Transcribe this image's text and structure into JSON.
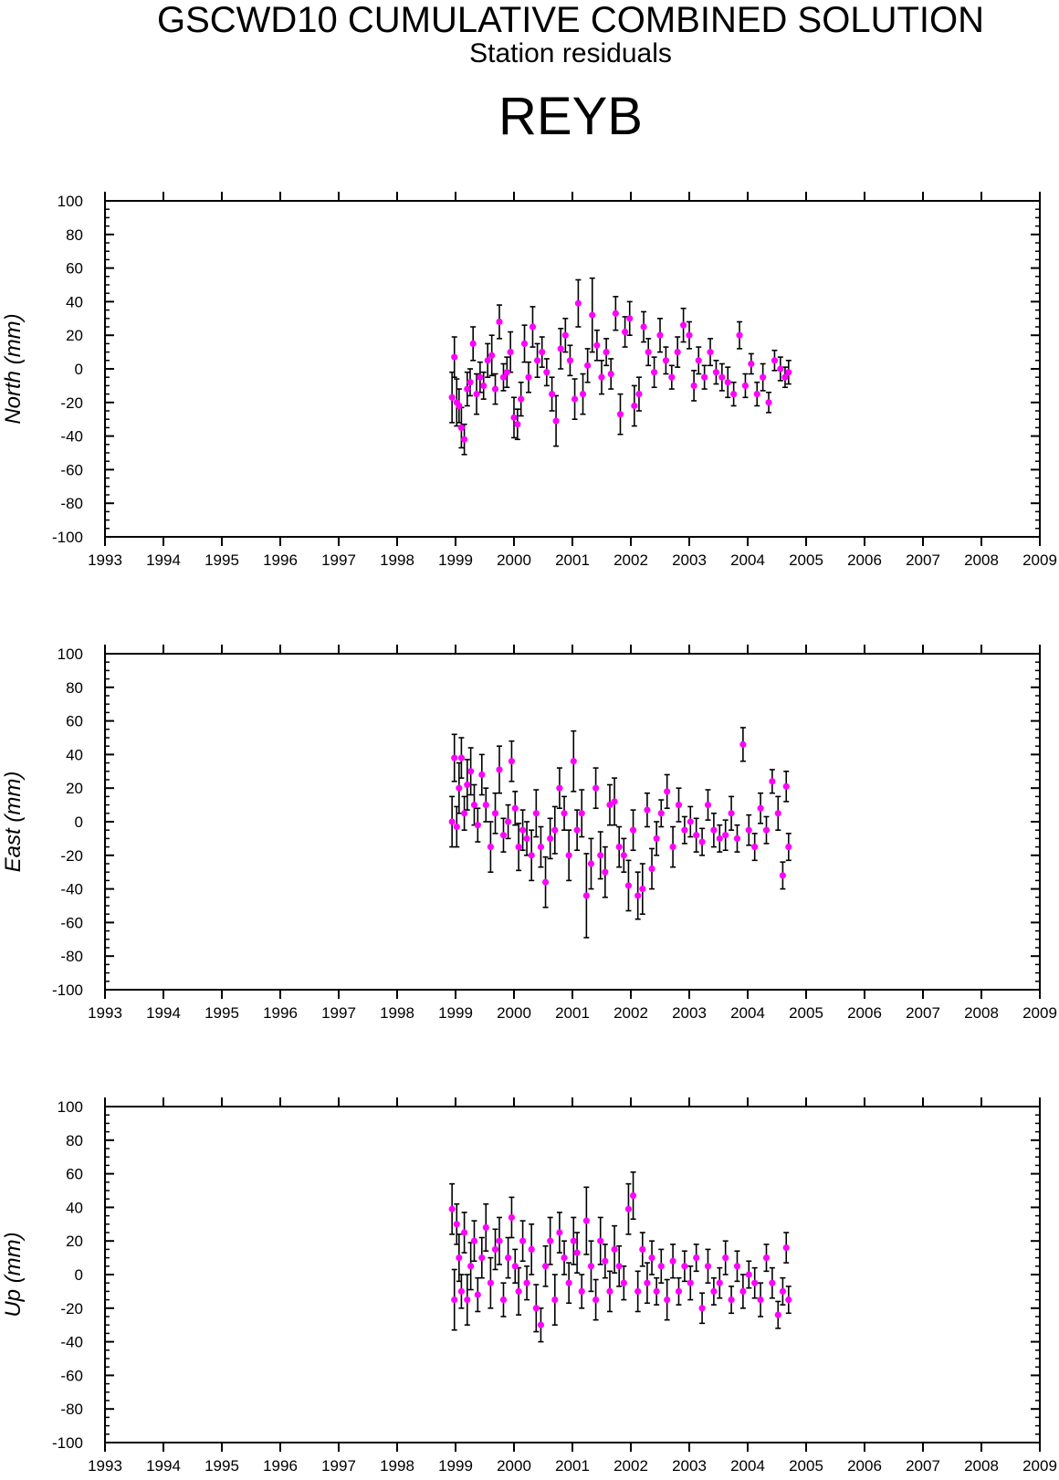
{
  "header": {
    "title": "GSCWD10 CUMULATIVE COMBINED SOLUTION",
    "subtitle": "Station residuals",
    "station": "REYB"
  },
  "colors": {
    "point": "#ff00ff",
    "errorbar": "#000000",
    "axis": "#000000",
    "background": "#ffffff"
  },
  "chart_data": [
    {
      "type": "scatter",
      "ylabel": "North (mm)",
      "xlim": [
        1993,
        2009
      ],
      "ylim": [
        -100,
        100
      ],
      "x_tick_labels": [
        "1993",
        "1994",
        "1995",
        "1996",
        "1997",
        "1998",
        "1999",
        "2000",
        "2001",
        "2002",
        "2003",
        "2004",
        "2005",
        "2006",
        "2007",
        "2008",
        "2009"
      ],
      "y_tick_labels": [
        "100",
        "80",
        "60",
        "40",
        "20",
        "0",
        "-20",
        "-40",
        "-60",
        "-80",
        "-100"
      ],
      "error_bars": true,
      "series": [
        {
          "x": [
            1998.94,
            1998.98,
            1999.02,
            1999.06,
            1999.1,
            1999.15,
            1999.2,
            1999.25,
            1999.3,
            1999.36,
            1999.42,
            1999.48,
            1999.55,
            1999.62,
            1999.68,
            1999.75,
            1999.82,
            1999.88,
            1999.94,
            2000.0,
            2000.06,
            2000.12,
            2000.18,
            2000.25,
            2000.32,
            2000.4,
            2000.48,
            2000.56,
            2000.65,
            2000.72,
            2000.8,
            2000.88,
            2000.96,
            2001.04,
            2001.1,
            2001.18,
            2001.26,
            2001.34,
            2001.42,
            2001.5,
            2001.58,
            2001.66,
            2001.74,
            2001.82,
            2001.9,
            2001.98,
            2002.06,
            2002.14,
            2002.22,
            2002.3,
            2002.4,
            2002.5,
            2002.6,
            2002.7,
            2002.8,
            2002.9,
            2003.0,
            2003.08,
            2003.16,
            2003.26,
            2003.36,
            2003.46,
            2003.56,
            2003.66,
            2003.76,
            2003.86,
            2003.96,
            2004.06,
            2004.16,
            2004.26,
            2004.36,
            2004.46,
            2004.56,
            2004.64,
            2004.7
          ],
          "y": [
            -17,
            7,
            -20,
            -22,
            -35,
            -42,
            -12,
            -8,
            15,
            -15,
            -5,
            -10,
            5,
            8,
            -12,
            28,
            -5,
            -2,
            10,
            -29,
            -33,
            -18,
            15,
            -5,
            25,
            5,
            10,
            -2,
            -15,
            -31,
            12,
            20,
            5,
            -18,
            39,
            -15,
            2,
            32,
            14,
            -5,
            10,
            -3,
            33,
            -27,
            22,
            30,
            -22,
            -15,
            25,
            10,
            -2,
            20,
            5,
            -5,
            10,
            26,
            20,
            -10,
            5,
            -5,
            10,
            -2,
            -5,
            -8,
            -15,
            20,
            -10,
            3,
            -15,
            -5,
            -20,
            5,
            0,
            -5,
            -2
          ],
          "err": [
            15,
            12,
            14,
            10,
            12,
            9,
            10,
            8,
            10,
            12,
            9,
            8,
            10,
            12,
            9,
            10,
            8,
            9,
            12,
            12,
            9,
            10,
            11,
            9,
            12,
            10,
            9,
            8,
            10,
            15,
            12,
            10,
            9,
            12,
            14,
            12,
            10,
            22,
            9,
            10,
            8,
            9,
            10,
            12,
            9,
            10,
            12,
            10,
            9,
            8,
            9,
            10,
            8,
            7,
            9,
            10,
            8,
            9,
            8,
            7,
            8,
            7,
            8,
            9,
            7,
            8,
            7,
            6,
            7,
            8,
            6,
            6,
            7,
            6,
            7
          ]
        }
      ]
    },
    {
      "type": "scatter",
      "ylabel": "East (mm)",
      "xlim": [
        1993,
        2009
      ],
      "ylim": [
        -100,
        100
      ],
      "x_tick_labels": [
        "1993",
        "1994",
        "1995",
        "1996",
        "1997",
        "1998",
        "1999",
        "2000",
        "2001",
        "2002",
        "2003",
        "2004",
        "2005",
        "2006",
        "2007",
        "2008",
        "2009"
      ],
      "y_tick_labels": [
        "100",
        "80",
        "60",
        "40",
        "20",
        "0",
        "-20",
        "-40",
        "-60",
        "-80",
        "-100"
      ],
      "error_bars": true,
      "series": [
        {
          "x": [
            1998.94,
            1998.98,
            1999.02,
            1999.06,
            1999.1,
            1999.15,
            1999.2,
            1999.26,
            1999.32,
            1999.38,
            1999.45,
            1999.52,
            1999.6,
            1999.68,
            1999.75,
            1999.82,
            1999.9,
            1999.96,
            2000.02,
            2000.08,
            2000.15,
            2000.22,
            2000.3,
            2000.38,
            2000.46,
            2000.54,
            2000.62,
            2000.7,
            2000.78,
            2000.86,
            2000.94,
            2001.02,
            2001.08,
            2001.16,
            2001.24,
            2001.32,
            2001.4,
            2001.48,
            2001.56,
            2001.64,
            2001.72,
            2001.8,
            2001.88,
            2001.96,
            2002.04,
            2002.12,
            2002.2,
            2002.28,
            2002.36,
            2002.44,
            2002.52,
            2002.62,
            2002.72,
            2002.82,
            2002.92,
            2003.02,
            2003.12,
            2003.22,
            2003.32,
            2003.42,
            2003.52,
            2003.62,
            2003.72,
            2003.82,
            2003.92,
            2004.02,
            2004.12,
            2004.22,
            2004.32,
            2004.42,
            2004.52,
            2004.6,
            2004.66,
            2004.7
          ],
          "y": [
            0,
            38,
            -3,
            20,
            38,
            5,
            22,
            30,
            10,
            -2,
            28,
            10,
            -15,
            5,
            31,
            -8,
            0,
            36,
            8,
            -15,
            -5,
            -10,
            -20,
            5,
            -15,
            -36,
            -10,
            -5,
            20,
            5,
            -20,
            36,
            -5,
            5,
            -44,
            -25,
            20,
            -20,
            -30,
            10,
            12,
            -15,
            -20,
            -38,
            -5,
            -44,
            -40,
            7,
            -28,
            -10,
            5,
            18,
            -15,
            10,
            -5,
            0,
            -8,
            -12,
            10,
            -5,
            -10,
            -8,
            5,
            -10,
            46,
            -5,
            -15,
            8,
            -5,
            24,
            5,
            -32,
            21,
            -15
          ],
          "err": [
            15,
            14,
            12,
            15,
            12,
            10,
            15,
            14,
            12,
            10,
            12,
            10,
            15,
            12,
            14,
            10,
            10,
            12,
            10,
            14,
            12,
            10,
            15,
            14,
            12,
            15,
            12,
            14,
            12,
            10,
            15,
            18,
            12,
            14,
            25,
            15,
            12,
            14,
            15,
            12,
            14,
            12,
            10,
            15,
            12,
            14,
            15,
            10,
            12,
            10,
            8,
            10,
            12,
            10,
            8,
            9,
            10,
            8,
            9,
            10,
            8,
            9,
            10,
            8,
            10,
            9,
            8,
            9,
            8,
            7,
            10,
            8,
            9,
            8
          ]
        }
      ]
    },
    {
      "type": "scatter",
      "ylabel": "Up (mm)",
      "xlim": [
        1993,
        2009
      ],
      "ylim": [
        -100,
        100
      ],
      "x_tick_labels": [
        "1993",
        "1994",
        "1995",
        "1996",
        "1997",
        "1998",
        "1999",
        "2000",
        "2001",
        "2002",
        "2003",
        "2004",
        "2005",
        "2006",
        "2007",
        "2008",
        "2009"
      ],
      "y_tick_labels": [
        "100",
        "80",
        "60",
        "40",
        "20",
        "0",
        "-20",
        "-40",
        "-60",
        "-80",
        "-100"
      ],
      "error_bars": true,
      "series": [
        {
          "x": [
            1998.94,
            1998.98,
            1999.02,
            1999.06,
            1999.1,
            1999.15,
            1999.2,
            1999.26,
            1999.32,
            1999.38,
            1999.45,
            1999.52,
            1999.6,
            1999.68,
            1999.75,
            1999.82,
            1999.9,
            1999.96,
            2000.02,
            2000.08,
            2000.15,
            2000.22,
            2000.3,
            2000.38,
            2000.46,
            2000.54,
            2000.62,
            2000.7,
            2000.78,
            2000.86,
            2000.94,
            2001.02,
            2001.08,
            2001.16,
            2001.24,
            2001.32,
            2001.4,
            2001.48,
            2001.56,
            2001.64,
            2001.72,
            2001.8,
            2001.88,
            2001.96,
            2002.04,
            2002.12,
            2002.2,
            2002.28,
            2002.36,
            2002.44,
            2002.52,
            2002.62,
            2002.72,
            2002.82,
            2002.92,
            2003.02,
            2003.12,
            2003.22,
            2003.32,
            2003.42,
            2003.52,
            2003.62,
            2003.72,
            2003.82,
            2003.92,
            2004.02,
            2004.12,
            2004.22,
            2004.32,
            2004.42,
            2004.52,
            2004.6,
            2004.66,
            2004.7
          ],
          "y": [
            39,
            -15,
            30,
            10,
            -10,
            25,
            -15,
            5,
            20,
            -12,
            10,
            28,
            -5,
            15,
            20,
            -15,
            10,
            34,
            5,
            -10,
            20,
            -5,
            15,
            -20,
            -30,
            5,
            20,
            -15,
            25,
            10,
            -5,
            20,
            13,
            -10,
            32,
            5,
            -15,
            20,
            8,
            -10,
            15,
            5,
            -5,
            39,
            47,
            -10,
            15,
            -5,
            10,
            -10,
            5,
            -15,
            8,
            -10,
            5,
            -5,
            10,
            -20,
            5,
            -10,
            -5,
            10,
            -15,
            5,
            -10,
            0,
            -5,
            -15,
            10,
            -5,
            -24,
            -10,
            16,
            -15
          ],
          "err": [
            15,
            18,
            12,
            14,
            10,
            12,
            15,
            14,
            12,
            10,
            12,
            14,
            15,
            12,
            14,
            10,
            12,
            12,
            10,
            14,
            12,
            10,
            15,
            14,
            10,
            12,
            14,
            15,
            12,
            10,
            12,
            14,
            12,
            10,
            20,
            15,
            12,
            14,
            10,
            12,
            14,
            12,
            10,
            15,
            14,
            12,
            10,
            12,
            10,
            8,
            10,
            12,
            10,
            8,
            9,
            10,
            8,
            9,
            10,
            8,
            9,
            10,
            8,
            9,
            10,
            8,
            9,
            10,
            8,
            9,
            8,
            8,
            9,
            8
          ]
        }
      ]
    }
  ]
}
